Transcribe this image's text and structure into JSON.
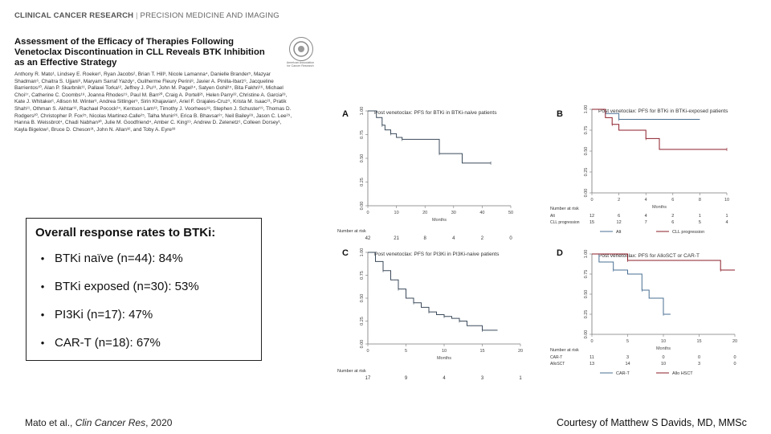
{
  "journal": {
    "name": "CLINICAL CANCER RESEARCH",
    "separator": "|",
    "section": "PRECISION MEDICINE AND IMAGING"
  },
  "paper": {
    "title_lines": [
      "Assessment of the Efficacy of Therapies Following",
      "Venetoclax Discontinuation in CLL Reveals BTK Inhibition",
      "as an Effective Strategy"
    ],
    "authors": "Anthony R. Mato¹, Lindsey E. Roeker¹, Ryan Jacobs², Brian T. Hill³, Nicole Lamanna⁴, Danielle Brander⁵, Mazyar Shadman⁶, Chaitra S. Ujjani⁶, Maryam Sarraf Yazdy⁷, Guilherme Fleury Perini⁸, Javier A. Pinilla-Ibarz⁹, Jacqueline Barrientos¹⁰, Alan P. Skarbnik¹¹, Pallawi Torka¹², Jeffrey J. Pu¹³, John M. Pagel¹⁴, Satyen Gohil¹⁵, Bita Fakhri¹⁶, Michael Choi¹⁷, Catherine C. Coombs¹⁸, Joanna Rhodes¹⁹, Paul M. Barr²⁰, Craig A. Portell²¹, Helen Parry²², Christine A. Garcia²³, Kate J. Whitaker¹, Allison M. Winter³, Andrea Sitlinger⁵, Sirin Khajavian¹, Ariel F. Grajales-Cruz⁹, Krista M. Isaac²¹, Pratik Shah¹¹, Othman S. Akhtar¹², Rachael Pocock²⁴, Kentson Lam¹³, Timothy J. Voorhees¹⁸, Stephen J. Schuster¹⁹, Thomas D. Rodgers²⁰, Christopher P. Fox²⁵, Nicolas Martinez-Calle²⁵, Talha Munir²⁶, Erica B. Bhavsar²⁷, Neil Bailey²⁸, Jason C. Lee²⁹, Hanna B. Weissbrot⁴, Chadi Nabhan³⁰, Julie M. Goodfriend⁴, Amber C. King¹⁹, Andrew D. Zelenetz¹, Colleen Dorsey¹, Kayla Bigelow¹, Bruce D. Cheson³¹, John N. Allan³², and Toby A. Eyre³³",
    "logo_text": "American Association for Cancer Research"
  },
  "response": {
    "heading": "Overall response rates to BTKi:",
    "bullet": "•",
    "items": [
      "BTKi naïve (n=44):  84%",
      "BTKi exposed (n=30):  53%",
      "PI3Ki (n=17):  47%",
      "CAR-T (n=18):  67%"
    ]
  },
  "footer": {
    "citation_prefix": "Mato et al., ",
    "citation_journal": "Clin Cancer Res",
    "citation_year": ", 2020",
    "courtesy": "Courtesy of Matthew S Davids, MD, MMSc"
  },
  "colors": {
    "km_line": "#3b4a5a",
    "km_red": "#8b1e2a",
    "km_blue": "#4a6f93"
  },
  "chart_data": [
    {
      "type": "line",
      "panel": "A",
      "title": "Post venetoclax: PFS for BTKi in BTKi-naive patients",
      "xlabel": "Months",
      "xlim": [
        0,
        50
      ],
      "ylim": [
        0,
        1
      ],
      "x_ticks": [
        "0",
        "10",
        "20",
        "30",
        "40",
        "50"
      ],
      "y_ticks": [
        "0.00",
        "0.25",
        "0.50",
        "0.75",
        "1.00"
      ],
      "series": [
        {
          "x": [
            0,
            3,
            5,
            6,
            8,
            10,
            12,
            20,
            25,
            33,
            43
          ],
          "y": [
            1.0,
            0.93,
            0.85,
            0.8,
            0.76,
            0.72,
            0.7,
            0.7,
            0.55,
            0.45,
            0.45
          ]
        }
      ],
      "risk_label": "Number at risk",
      "risk_values": [
        "42",
        "21",
        "8",
        "4",
        "2",
        "0"
      ]
    },
    {
      "type": "line",
      "panel": "B",
      "title": "Post venetoclax: PFS for BTKi in BTKi-exposed patients",
      "xlabel": "Months",
      "xlim": [
        0,
        10
      ],
      "ylim": [
        0,
        1
      ],
      "x_ticks": [
        "0",
        "2",
        "4",
        "6",
        "8",
        "10"
      ],
      "y_ticks": [
        "0.00",
        "0.25",
        "0.50",
        "0.75",
        "1.00"
      ],
      "series": [
        {
          "name": "Alt",
          "x": [
            0,
            1,
            2,
            8
          ],
          "y": [
            1.0,
            0.95,
            0.88,
            0.88
          ]
        },
        {
          "name": "CLL progression",
          "x": [
            0,
            1,
            1.5,
            2,
            4,
            5,
            10
          ],
          "y": [
            1.0,
            0.9,
            0.82,
            0.75,
            0.65,
            0.52,
            0.52
          ]
        }
      ],
      "risk_label": "Number at risk",
      "risk_rows": [
        {
          "label": "Alt",
          "values": [
            "12",
            "6",
            "4",
            "2",
            "1",
            "1"
          ]
        },
        {
          "label": "CLL progression",
          "values": [
            "15",
            "12",
            "7",
            "6",
            "5",
            "4"
          ]
        }
      ]
    },
    {
      "type": "line",
      "panel": "C",
      "title": "Post venetoclax: PFS for PI3Ki in PI3Ki-naive patients",
      "xlabel": "Months",
      "xlim": [
        0,
        20
      ],
      "ylim": [
        0,
        1
      ],
      "x_ticks": [
        "0",
        "5",
        "10",
        "15",
        "20"
      ],
      "y_ticks": [
        "0.00",
        "0.25",
        "0.50",
        "0.75",
        "1.00"
      ],
      "series": [
        {
          "x": [
            0,
            1,
            2,
            3,
            4,
            5,
            6,
            7,
            8,
            9,
            10,
            11,
            12,
            13,
            15,
            17
          ],
          "y": [
            1.0,
            0.9,
            0.8,
            0.7,
            0.6,
            0.5,
            0.45,
            0.4,
            0.35,
            0.32,
            0.3,
            0.28,
            0.25,
            0.2,
            0.15,
            0.15
          ]
        }
      ],
      "risk_label": "Number at risk",
      "risk_values": [
        "17",
        "9",
        "4",
        "3",
        "1"
      ]
    },
    {
      "type": "line",
      "panel": "D",
      "title": "Post venetoclax: PFS for AlloSCT or CAR-T",
      "xlabel": "Months",
      "xlim": [
        0,
        20
      ],
      "ylim": [
        0,
        1
      ],
      "x_ticks": [
        "0",
        "5",
        "10",
        "15",
        "20"
      ],
      "y_ticks": [
        "0.00",
        "0.25",
        "0.50",
        "0.75",
        "1.00"
      ],
      "series": [
        {
          "name": "CAR-T",
          "x": [
            0,
            1,
            3,
            5,
            7,
            8,
            10,
            11
          ],
          "y": [
            1.0,
            0.9,
            0.8,
            0.75,
            0.55,
            0.45,
            0.25,
            0.25
          ]
        },
        {
          "name": "Allo HSCT",
          "x": [
            0,
            3,
            5,
            16,
            18,
            20
          ],
          "y": [
            1.0,
            1.0,
            0.92,
            0.92,
            0.8,
            0.8
          ]
        }
      ],
      "risk_label": "Number at risk",
      "risk_rows": [
        {
          "label": "CAR-T",
          "values": [
            "11",
            "3",
            "0",
            "0",
            "0"
          ]
        },
        {
          "label": "AlloSCT",
          "values": [
            "13",
            "14",
            "10",
            "3",
            "0"
          ]
        }
      ]
    }
  ]
}
